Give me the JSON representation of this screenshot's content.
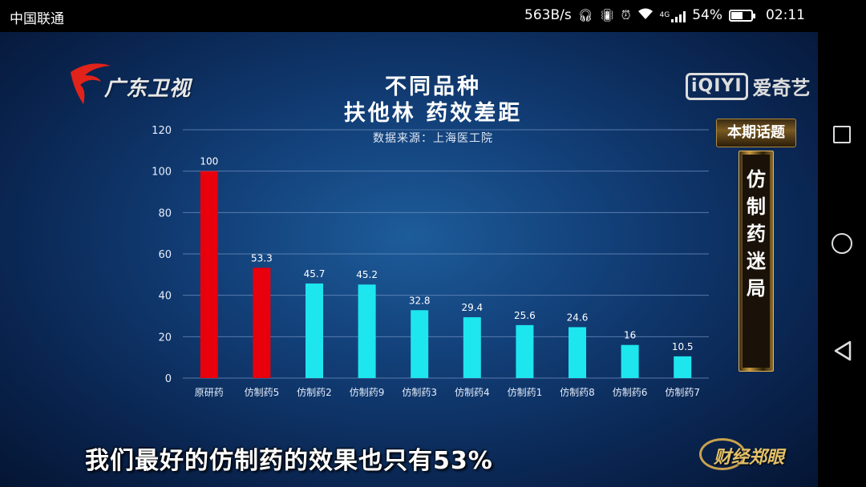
{
  "status_bar": {
    "carrier": "中国联通",
    "speed": "563B/s",
    "network": "4G",
    "battery": "54%",
    "time": "02:11"
  },
  "logos": {
    "channel": "广东卫视",
    "streaming_box": "iQIYI",
    "streaming_name": "爱奇艺",
    "program": "财经郑眼"
  },
  "topic": {
    "header": "本期话题",
    "vertical_lines": [
      "仿",
      "制",
      "药",
      "迷",
      "局"
    ]
  },
  "subtitle": "我们最好的仿制药的效果也只有53%",
  "colors": {
    "original": "#e8000c",
    "generic_red": "#e8000c",
    "generic": "#1ee6ee",
    "grid": "#6e8fc0"
  },
  "chart_data": {
    "type": "bar",
    "title": [
      "不同品种",
      "扶他林 药效差距"
    ],
    "subtitle": "数据来源：上海医工院",
    "categories": [
      "原研药",
      "仿制药5",
      "仿制药2",
      "仿制药9",
      "仿制药3",
      "仿制药4",
      "仿制药1",
      "仿制药8",
      "仿制药6",
      "仿制药7"
    ],
    "values": [
      100,
      53.3,
      45.7,
      45.2,
      32.8,
      29.4,
      25.6,
      24.6,
      16,
      10.5
    ],
    "value_labels": [
      "100",
      "53.3",
      "45.7",
      "45.2",
      "32.8",
      "29.4",
      "25.6",
      "24.6",
      "16",
      "10.5"
    ],
    "bar_colors": [
      "#e8000c",
      "#e8000c",
      "#1ee6ee",
      "#1ee6ee",
      "#1ee6ee",
      "#1ee6ee",
      "#1ee6ee",
      "#1ee6ee",
      "#1ee6ee",
      "#1ee6ee"
    ],
    "ylim": [
      0,
      120
    ],
    "yticks": [
      0,
      20,
      40,
      60,
      80,
      100,
      120
    ],
    "grid": true,
    "xlabel": "",
    "ylabel": ""
  }
}
